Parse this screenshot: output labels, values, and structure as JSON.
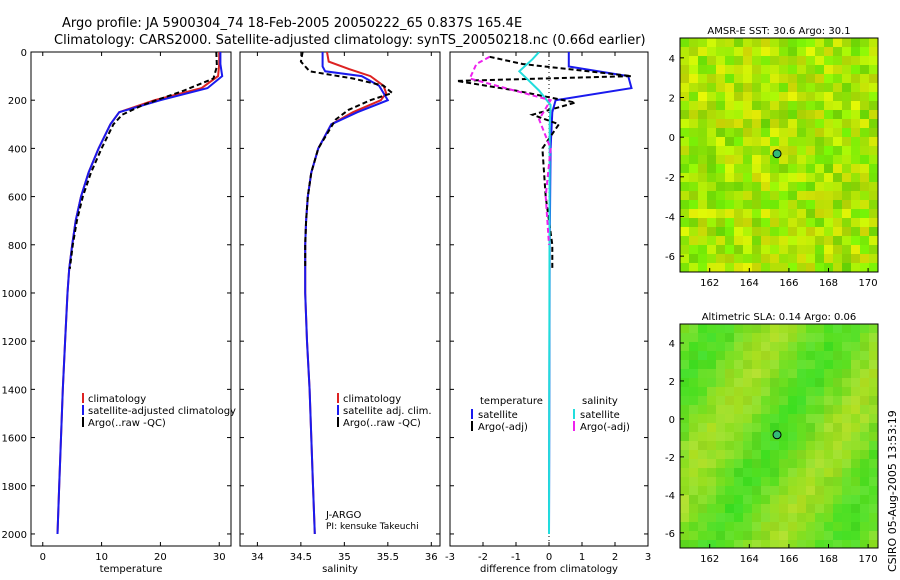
{
  "header": {
    "line1": "Argo profile: JA 5900304_74 18-Feb-2005 20050222_65 0.837S 165.4E",
    "line2": "Climatology: CARS2000. Satellite-adjusted climatology: synTS_20050218.nc (0.66d earlier)"
  },
  "side_stamp": "CSIRO 05-Aug-2005 13:53:19",
  "colors": {
    "climatology": "#dd2222",
    "satellite": "#1a1aee",
    "argo": "#000000",
    "salinity_sat": "#22dddd",
    "salinity_argo": "#ee22ee"
  },
  "chart_data": [
    {
      "type": "line",
      "title": "",
      "xlabel": "temperature",
      "ylabel": "",
      "xlim": [
        -2,
        32
      ],
      "ylim": [
        2050,
        0
      ],
      "xticks": [
        "0",
        "10",
        "20",
        "30"
      ],
      "xtick_values": [
        0,
        10,
        20,
        30
      ],
      "yticks": [
        "0",
        "200",
        "400",
        "600",
        "800",
        "1000",
        "1200",
        "1400",
        "1600",
        "1800",
        "2000"
      ],
      "ytick_values": [
        0,
        200,
        400,
        600,
        800,
        1000,
        1200,
        1400,
        1600,
        1800,
        2000
      ],
      "legend": [
        "climatology",
        "satellite-adjusted climatology",
        "Argo(..raw -QC)"
      ],
      "legend_position": "lower-right",
      "series": [
        {
          "name": "climatology",
          "color": "#dd2222",
          "dash": "",
          "points": [
            [
              30,
              0
            ],
            [
              30,
              50
            ],
            [
              29.8,
              100
            ],
            [
              27,
              150
            ],
            [
              19,
              200
            ],
            [
              13,
              250
            ],
            [
              11.5,
              300
            ],
            [
              9.5,
              400
            ],
            [
              7.8,
              500
            ],
            [
              6.5,
              600
            ],
            [
              5.6,
              700
            ],
            [
              5,
              800
            ],
            [
              4.5,
              900
            ],
            [
              4.2,
              1000
            ],
            [
              3.8,
              1200
            ],
            [
              3.4,
              1400
            ],
            [
              3.1,
              1600
            ],
            [
              2.8,
              1800
            ],
            [
              2.5,
              2000
            ]
          ]
        },
        {
          "name": "satellite-adjusted climatology",
          "color": "#1a1aee",
          "dash": "",
          "points": [
            [
              30.2,
              0
            ],
            [
              30.2,
              50
            ],
            [
              30.5,
              100
            ],
            [
              28,
              150
            ],
            [
              20,
              200
            ],
            [
              13,
              250
            ],
            [
              11.5,
              300
            ],
            [
              9.5,
              400
            ],
            [
              7.8,
              500
            ],
            [
              6.5,
              600
            ],
            [
              5.6,
              700
            ],
            [
              5,
              800
            ],
            [
              4.5,
              900
            ],
            [
              4.2,
              1000
            ],
            [
              3.8,
              1200
            ],
            [
              3.4,
              1400
            ],
            [
              3.1,
              1600
            ],
            [
              2.8,
              1800
            ],
            [
              2.5,
              2000
            ]
          ]
        },
        {
          "name": "Argo(..raw -QC)",
          "color": "#000000",
          "dash": "5,3",
          "points": [
            [
              29.5,
              0
            ],
            [
              29.6,
              60
            ],
            [
              29,
              110
            ],
            [
              24,
              160
            ],
            [
              17,
              220
            ],
            [
              13.5,
              260
            ],
            [
              12,
              300
            ],
            [
              10,
              400
            ],
            [
              8.2,
              500
            ],
            [
              6.8,
              600
            ],
            [
              5.8,
              700
            ],
            [
              5.1,
              800
            ],
            [
              4.6,
              900
            ]
          ]
        }
      ]
    },
    {
      "type": "line",
      "title": "",
      "xlabel": "salinity",
      "ylabel": "",
      "xlim": [
        33.8,
        36.1
      ],
      "ylim": [
        2050,
        0
      ],
      "xticks": [
        "34",
        "34.5",
        "35",
        "35.5",
        "36"
      ],
      "xtick_values": [
        34,
        34.5,
        35,
        35.5,
        36
      ],
      "legend": [
        "climatology",
        "satellite adj. clim.",
        "Argo(..raw -QC)"
      ],
      "legend_position": "lower-right",
      "annotations": [
        "J-ARGO",
        "PI: kensuke Takeuchi"
      ],
      "series": [
        {
          "name": "climatology",
          "color": "#dd2222",
          "dash": "",
          "points": [
            [
              34.8,
              0
            ],
            [
              34.82,
              40
            ],
            [
              35.05,
              70
            ],
            [
              35.3,
              100
            ],
            [
              35.45,
              140
            ],
            [
              35.48,
              170
            ],
            [
              35.42,
              200
            ],
            [
              35.1,
              250
            ],
            [
              34.85,
              300
            ],
            [
              34.7,
              400
            ],
            [
              34.62,
              500
            ],
            [
              34.58,
              600
            ],
            [
              34.56,
              700
            ],
            [
              34.55,
              800
            ],
            [
              34.55,
              1000
            ],
            [
              34.57,
              1200
            ],
            [
              34.6,
              1400
            ],
            [
              34.62,
              1600
            ],
            [
              34.64,
              1800
            ],
            [
              34.66,
              2000
            ]
          ]
        },
        {
          "name": "satellite adj. clim.",
          "color": "#1a1aee",
          "dash": "",
          "points": [
            [
              34.75,
              0
            ],
            [
              34.75,
              60
            ],
            [
              34.78,
              80
            ],
            [
              35.2,
              100
            ],
            [
              35.4,
              140
            ],
            [
              35.5,
              200
            ],
            [
              35.15,
              250
            ],
            [
              34.85,
              300
            ],
            [
              34.7,
              400
            ],
            [
              34.62,
              500
            ],
            [
              34.58,
              600
            ],
            [
              34.56,
              700
            ],
            [
              34.55,
              800
            ],
            [
              34.55,
              1000
            ],
            [
              34.57,
              1200
            ],
            [
              34.6,
              1400
            ],
            [
              34.62,
              1600
            ],
            [
              34.64,
              1800
            ],
            [
              34.66,
              2000
            ]
          ]
        },
        {
          "name": "Argo(..raw -QC)",
          "color": "#000000",
          "dash": "5,3",
          "points": [
            [
              34.52,
              0
            ],
            [
              34.5,
              40
            ],
            [
              34.6,
              80
            ],
            [
              35.1,
              110
            ],
            [
              35.45,
              140
            ],
            [
              35.55,
              170
            ],
            [
              35.3,
              200
            ],
            [
              35.05,
              240
            ],
            [
              34.9,
              280
            ],
            [
              34.7,
              400
            ],
            [
              34.62,
              500
            ],
            [
              34.58,
              600
            ],
            [
              34.56,
              700
            ],
            [
              34.55,
              800
            ],
            [
              34.55,
              900
            ]
          ]
        }
      ]
    },
    {
      "type": "line",
      "title": "",
      "xlabel": "difference from climatology",
      "ylabel": "",
      "xlim": [
        -3,
        3
      ],
      "ylim": [
        2050,
        0
      ],
      "xticks": [
        "-3",
        "-2",
        "-1",
        "0",
        "1",
        "2",
        "3"
      ],
      "xtick_values": [
        -3,
        -2,
        -1,
        0,
        1,
        2,
        3
      ],
      "legend_left": {
        "header": "temperature",
        "items": [
          "satellite",
          "Argo(-adj)"
        ]
      },
      "legend_right": {
        "header": "salinity",
        "items": [
          "satellite",
          "Argo(-adj)"
        ]
      },
      "series": [
        {
          "name": "temperature satellite",
          "color": "#1a1aee",
          "dash": "",
          "points": [
            [
              0.6,
              0
            ],
            [
              0.6,
              60
            ],
            [
              2.4,
              100
            ],
            [
              2.5,
              150
            ],
            [
              0.2,
              200
            ],
            [
              0.1,
              250
            ],
            [
              0.05,
              400
            ],
            [
              0.02,
              800
            ],
            [
              0,
              2000
            ]
          ]
        },
        {
          "name": "temperature Argo(-adj)",
          "color": "#000000",
          "dash": "5,3",
          "points": [
            [
              -1.8,
              20
            ],
            [
              -0.8,
              50
            ],
            [
              2.5,
              100
            ],
            [
              -2.8,
              120
            ],
            [
              -1,
              160
            ],
            [
              0.8,
              210
            ],
            [
              -0.5,
              260
            ],
            [
              0.3,
              300
            ],
            [
              -0.2,
              400
            ],
            [
              -0.1,
              600
            ],
            [
              0.1,
              800
            ],
            [
              0.1,
              900
            ]
          ]
        },
        {
          "name": "salinity satellite",
          "color": "#22dddd",
          "dash": "",
          "points": [
            [
              -0.3,
              0
            ],
            [
              -0.5,
              30
            ],
            [
              -0.9,
              80
            ],
            [
              -0.3,
              160
            ],
            [
              0.05,
              220
            ],
            [
              0.02,
              300
            ],
            [
              0,
              2000
            ]
          ]
        },
        {
          "name": "salinity Argo(-adj)",
          "color": "#ee22ee",
          "dash": "5,3",
          "points": [
            [
              -1.8,
              20
            ],
            [
              -2.2,
              50
            ],
            [
              -2.4,
              110
            ],
            [
              -0.5,
              180
            ],
            [
              0.05,
              200
            ],
            [
              -0.3,
              280
            ],
            [
              0.05,
              400
            ],
            [
              -0.1,
              600
            ],
            [
              0,
              800
            ]
          ]
        }
      ]
    },
    {
      "type": "heatmap",
      "title": "AMSR-E SST: 30.6 Argo: 30.1",
      "xlim": [
        160.5,
        170.5
      ],
      "ylim": [
        -6.8,
        5
      ],
      "xticks": [
        "162",
        "164",
        "166",
        "168",
        "170"
      ],
      "xtick_values": [
        162,
        164,
        166,
        168,
        170
      ],
      "yticks": [
        "4",
        "2",
        "0",
        "-2",
        "-4",
        "-6"
      ],
      "ytick_values": [
        4,
        2,
        0,
        -2,
        -4,
        -6
      ],
      "marker": [
        165.4,
        -0.837
      ]
    },
    {
      "type": "heatmap",
      "title": "Altimetric SLA: 0.14 Argo: 0.06",
      "xlim": [
        160.5,
        170.5
      ],
      "ylim": [
        -6.8,
        5
      ],
      "xticks": [
        "162",
        "164",
        "166",
        "168",
        "170"
      ],
      "xtick_values": [
        162,
        164,
        166,
        168,
        170
      ],
      "yticks": [
        "4",
        "2",
        "0",
        "-2",
        "-4",
        "-6"
      ],
      "ytick_values": [
        4,
        2,
        0,
        -2,
        -4,
        -6
      ],
      "marker": [
        165.4,
        -0.837
      ]
    }
  ]
}
